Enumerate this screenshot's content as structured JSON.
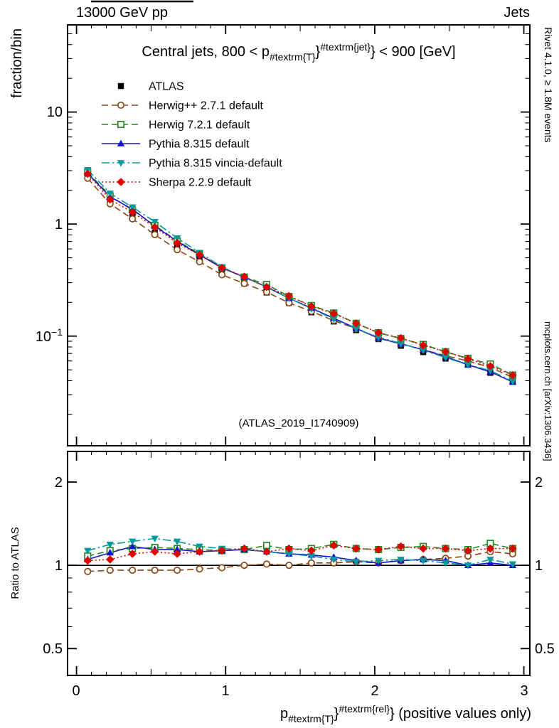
{
  "header": {
    "left": "13000 GeV pp",
    "right": "Jets"
  },
  "title": {
    "prefix": "Central jets, 800 < p",
    "sub": "#textrm{T}",
    "mid": "}",
    "sup": "#textrm{jet}",
    "suffix": "} < 900 [GeV]"
  },
  "watermark": "(ATLAS_2019_I1740909)",
  "side_notes": {
    "top_right": "Rivet 4.1.0, ≥ 1.8M events",
    "bottom_right": "mcplots.cern.ch [arXiv:1306.3436]"
  },
  "axes": {
    "y_main_label": "fraction/bin",
    "y_ratio_label": "Ratio to ATLAS",
    "x_label": {
      "prefix": "p",
      "sub": "#textrm{T}",
      "mid": "}",
      "sup": "#textrm{rel}",
      "suffix": "} (positive values only)"
    },
    "x_tick_labels": [
      "0",
      "1",
      "2",
      "3"
    ],
    "y_main_tick_labels": {
      "ten": "10",
      "one": "1",
      "tenth_base": "10",
      "tenth_exp": "−1"
    },
    "y_ratio_tick_labels": {
      "two": "2",
      "one": "1",
      "half": "0.5"
    }
  },
  "chart_data": {
    "type": "scatter",
    "title": "Central jets, 800 < pT^jet < 900 [GeV]",
    "xlabel": "pT^rel (positive values only)",
    "ylabel_main": "fraction/bin",
    "ylabel_ratio": "Ratio to ATLAS",
    "x_range": [
      -0.06,
      3.04
    ],
    "y_main_range": [
      0.0105,
      60
    ],
    "y_main_scale": "log",
    "y_ratio_range": [
      0.4,
      2.58
    ],
    "y_ratio_scale": "log",
    "bin_width": 0.15,
    "x": [
      0.075,
      0.225,
      0.375,
      0.525,
      0.675,
      0.825,
      0.975,
      1.125,
      1.275,
      1.425,
      1.575,
      1.725,
      1.875,
      2.025,
      2.175,
      2.325,
      2.475,
      2.625,
      2.775,
      2.925
    ],
    "series": [
      {
        "name": "ATLAS",
        "color": "#000000",
        "marker": "square-filled",
        "line": "none",
        "values": [
          2.7,
          1.58,
          1.16,
          0.84,
          0.615,
          0.475,
          0.36,
          0.295,
          0.245,
          0.198,
          0.163,
          0.135,
          0.113,
          0.094,
          0.082,
          0.072,
          0.063,
          0.0555,
          0.047,
          0.039
        ]
      },
      {
        "name": "Herwig++ 2.7.1 default",
        "color": "#8b4513",
        "marker": "circle-open",
        "line": "dashed",
        "ratio_to_atlas": [
          0.95,
          0.96,
          0.96,
          0.96,
          0.96,
          0.97,
          0.98,
          1.0,
          1.01,
          1.0,
          1.02,
          1.02,
          1.03,
          1.02,
          1.04,
          1.05,
          1.06,
          1.08,
          1.12,
          1.1
        ]
      },
      {
        "name": "Herwig 7.2.1 default",
        "color": "#1e8c1e",
        "marker": "square-open",
        "line": "dashed",
        "ratio_to_atlas": [
          1.08,
          1.13,
          1.15,
          1.16,
          1.15,
          1.14,
          1.13,
          1.14,
          1.18,
          1.14,
          1.15,
          1.19,
          1.15,
          1.14,
          1.16,
          1.17,
          1.15,
          1.14,
          1.2,
          1.15
        ]
      },
      {
        "name": "Pythia 8.315 default",
        "color": "#1414cc",
        "marker": "triangle-up-filled",
        "line": "solid",
        "ratio_to_atlas": [
          1.05,
          1.11,
          1.17,
          1.14,
          1.14,
          1.12,
          1.13,
          1.14,
          1.12,
          1.1,
          1.09,
          1.07,
          1.04,
          1.02,
          1.04,
          1.05,
          1.04,
          1.0,
          1.02,
          1.0
        ]
      },
      {
        "name": "Pythia 8.315 vincia-default",
        "color": "#00999e",
        "marker": "triangle-down-filled",
        "line": "dashdot",
        "ratio_to_atlas": [
          1.13,
          1.19,
          1.22,
          1.25,
          1.22,
          1.17,
          1.15,
          1.14,
          1.12,
          1.1,
          1.08,
          1.05,
          1.03,
          1.04,
          1.05,
          1.04,
          1.02,
          1.0,
          1.05,
          1.01
        ]
      },
      {
        "name": "Sherpa 2.2.9 default",
        "color": "#e00000",
        "marker": "diamond-filled",
        "line": "dotted",
        "ratio_to_atlas": [
          1.04,
          1.05,
          1.1,
          1.12,
          1.1,
          1.12,
          1.13,
          1.15,
          1.12,
          1.15,
          1.13,
          1.18,
          1.15,
          1.14,
          1.17,
          1.15,
          1.15,
          1.13,
          1.15,
          1.15
        ]
      }
    ],
    "note": "MC main-panel values equal ATLAS values multiplied by ratio_to_atlas; ratio panel shows ratio_to_atlas around the unity line"
  }
}
